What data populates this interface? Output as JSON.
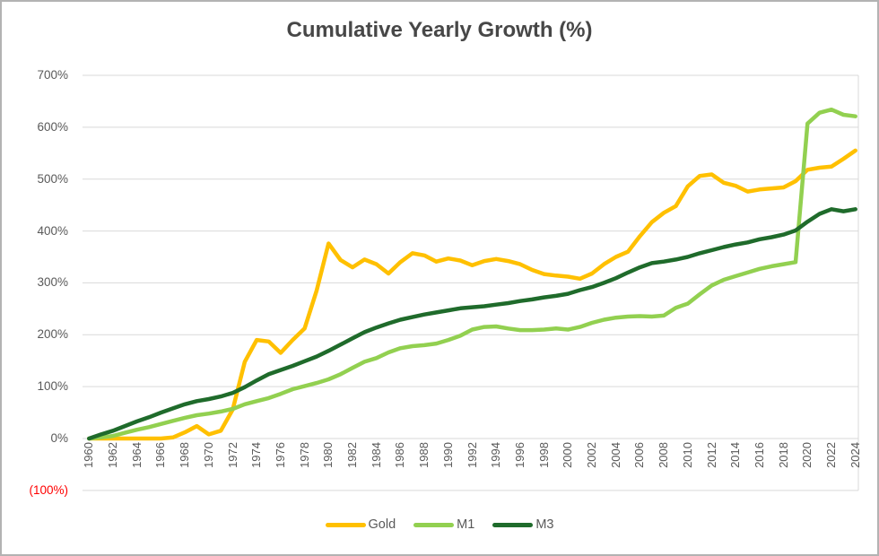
{
  "chart_data": {
    "type": "line",
    "title": "Cumulative Yearly Growth (%)",
    "xlabel": "",
    "ylabel": "",
    "ylim": [
      -100,
      700
    ],
    "y_tick_step": 100,
    "grid": true,
    "legend_position": "bottom",
    "x": [
      1960,
      1961,
      1962,
      1963,
      1964,
      1965,
      1966,
      1967,
      1968,
      1969,
      1970,
      1971,
      1972,
      1973,
      1974,
      1975,
      1976,
      1977,
      1978,
      1979,
      1980,
      1981,
      1982,
      1983,
      1984,
      1985,
      1986,
      1987,
      1988,
      1989,
      1990,
      1991,
      1992,
      1993,
      1994,
      1995,
      1996,
      1997,
      1998,
      1999,
      2000,
      2001,
      2002,
      2003,
      2004,
      2005,
      2006,
      2007,
      2008,
      2009,
      2010,
      2011,
      2012,
      2013,
      2014,
      2015,
      2016,
      2017,
      2018,
      2019,
      2020,
      2021,
      2022,
      2023,
      2024
    ],
    "x_axis": {
      "tick_labels": [
        "1960",
        "1962",
        "1964",
        "1966",
        "1968",
        "1970",
        "1972",
        "1974",
        "1976",
        "1978",
        "1980",
        "1982",
        "1984",
        "1986",
        "1988",
        "1990",
        "1992",
        "1994",
        "1996",
        "1998",
        "2000",
        "2002",
        "2004",
        "2006",
        "2008",
        "2010",
        "2012",
        "2014",
        "2016",
        "2018",
        "2020",
        "2022",
        "2024"
      ]
    },
    "y_axis": {
      "tick_labels_top_to_bottom": [
        "700%",
        "600%",
        "500%",
        "400%",
        "300%",
        "200%",
        "100%",
        "0%",
        "(100%)"
      ],
      "tick_values_top_to_bottom": [
        700,
        600,
        500,
        400,
        300,
        200,
        100,
        0,
        -100
      ],
      "negative_label_color": "#ff0000",
      "label_color": "#595959"
    },
    "series": [
      {
        "name": "Gold",
        "color": "#FFC000",
        "values": [
          0,
          0,
          0,
          0,
          0,
          0,
          0,
          2,
          12,
          24,
          8,
          15,
          56,
          148,
          190,
          187,
          165,
          190,
          212,
          285,
          376,
          344,
          330,
          345,
          336,
          318,
          340,
          357,
          353,
          341,
          347,
          343,
          334,
          342,
          346,
          342,
          336,
          325,
          317,
          314,
          312,
          308,
          318,
          336,
          350,
          360,
          390,
          417,
          435,
          448,
          486,
          506,
          509,
          493,
          487,
          476,
          480,
          482,
          484,
          496,
          518,
          522,
          524,
          539,
          555
        ]
      },
      {
        "name": "M1",
        "color": "#92D050",
        "values": [
          0,
          2,
          5,
          11,
          17,
          22,
          28,
          34,
          40,
          45,
          48,
          52,
          57,
          66,
          72,
          78,
          86,
          95,
          101,
          107,
          114,
          124,
          136,
          148,
          155,
          166,
          174,
          178,
          180,
          183,
          190,
          198,
          210,
          215,
          216,
          212,
          209,
          209,
          210,
          212,
          210,
          215,
          223,
          229,
          233,
          235,
          236,
          235,
          237,
          252,
          260,
          278,
          295,
          306,
          313,
          320,
          327,
          332,
          336,
          340,
          607,
          628,
          634,
          624,
          621
        ]
      },
      {
        "name": "M3",
        "color": "#1F6B2B",
        "values": [
          0,
          8,
          15,
          24,
          33,
          41,
          50,
          58,
          66,
          72,
          76,
          81,
          88,
          99,
          112,
          124,
          132,
          140,
          149,
          158,
          169,
          181,
          193,
          205,
          214,
          222,
          229,
          234,
          239,
          243,
          247,
          251,
          253,
          255,
          258,
          261,
          265,
          268,
          272,
          275,
          279,
          286,
          292,
          300,
          309,
          320,
          330,
          338,
          341,
          345,
          350,
          357,
          363,
          369,
          374,
          378,
          384,
          388,
          393,
          401,
          418,
          433,
          442,
          438,
          442
        ]
      }
    ],
    "style": {
      "gridline_color": "#d9d9d9",
      "title_color": "#474747",
      "line_width": 4.5
    }
  }
}
